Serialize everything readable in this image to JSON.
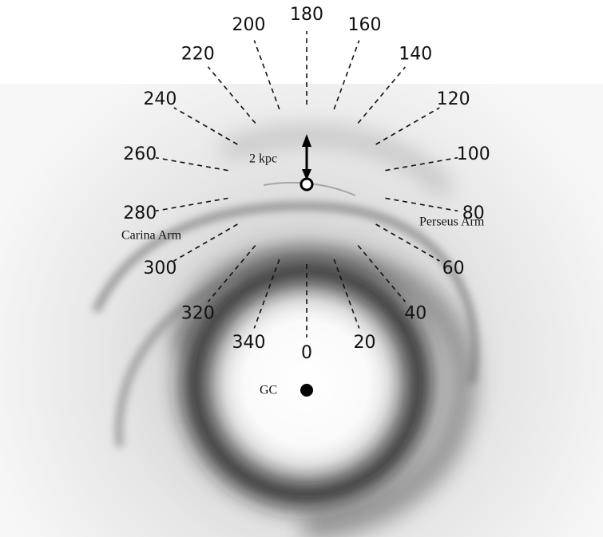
{
  "longitudes": [
    0,
    20,
    40,
    60,
    80,
    100,
    120,
    140,
    160,
    180,
    200,
    220,
    240,
    260,
    280,
    300,
    320,
    340
  ],
  "scale_label": "2 kpc",
  "center_label": "GC",
  "arms": {
    "carina": "Carina Arm",
    "perseus": "Perseus Arm"
  }
}
